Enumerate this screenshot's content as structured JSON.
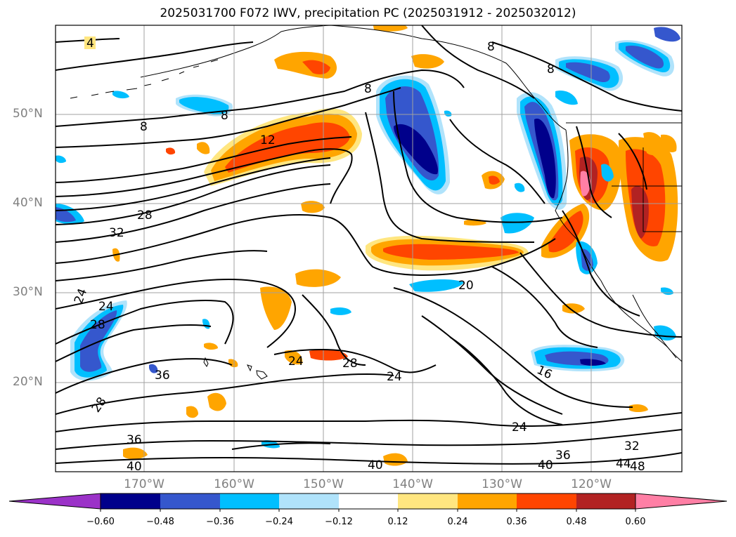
{
  "title": "2025031700 F072 IWV, precipitation PC (2025031912 - 2025032012)",
  "axes": {
    "lat_labels": [
      "50°N",
      "40°N",
      "30°N",
      "20°N"
    ],
    "lon_labels": [
      "170°W",
      "160°W",
      "150°W",
      "140°W",
      "130°W",
      "120°W"
    ]
  },
  "contour_labels": [
    "4",
    "8",
    "8",
    "8",
    "8",
    "8",
    "12",
    "28",
    "32",
    "24",
    "24",
    "28",
    "36",
    "28",
    "24",
    "28",
    "24",
    "20",
    "16",
    "24",
    "36",
    "40",
    "40",
    "32",
    "44",
    "48",
    "40",
    "36"
  ],
  "colorbar": {
    "ticks": [
      "−0.60",
      "−0.48",
      "−0.36",
      "−0.24",
      "−0.12",
      "0.12",
      "0.24",
      "0.36",
      "0.48",
      "0.60"
    ],
    "colors": [
      "#9b32c8",
      "#00008b",
      "#3557cd",
      "#00bfff",
      "#b0e3fb",
      "#ffffff",
      "#ffe680",
      "#ffa500",
      "#ff4500",
      "#b22222",
      "#ff7fa5"
    ]
  },
  "colors": {
    "grid": "#a0a0a0",
    "contour": "#000000",
    "axis_label": "#808080"
  }
}
